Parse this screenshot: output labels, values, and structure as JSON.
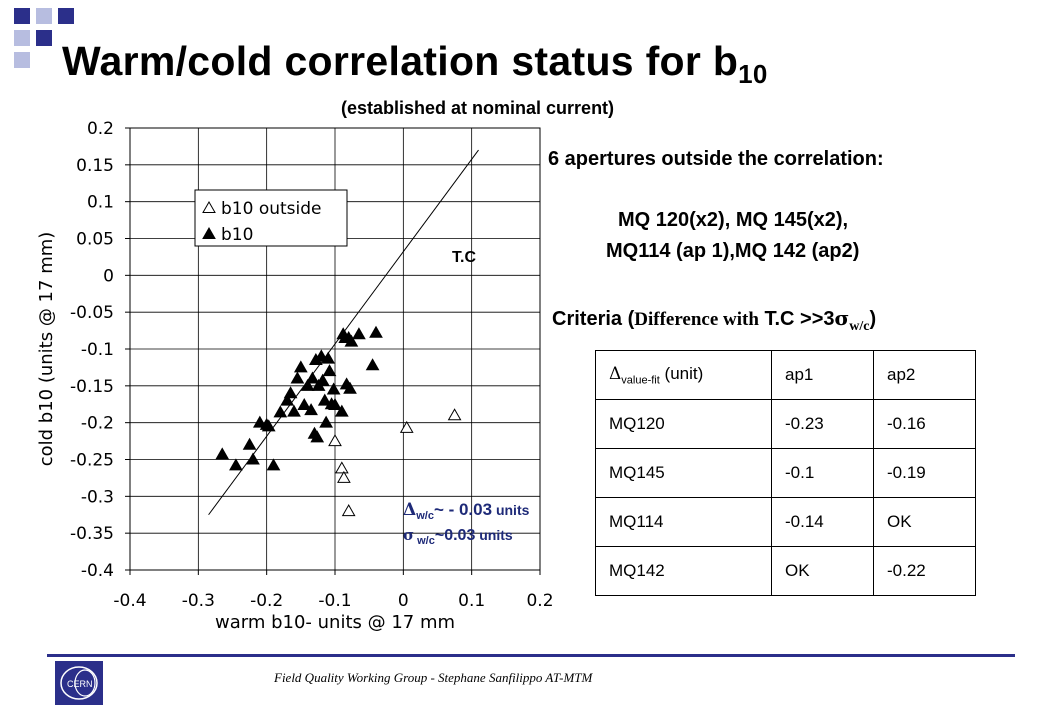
{
  "slide": {
    "title_main": "Warm/cold  correlation status for b",
    "title_sub": "10",
    "subtitle": "(established at nominal current)",
    "info_heading": "6 apertures outside the correlation:",
    "info_magnets_line1": "MQ 120(x2), MQ 145(x2),",
    "info_magnets_line2": "MQ114 (ap 1),MQ 142 (ap2)",
    "criteria_prefix": "Criteria (",
    "criteria_phrase": "Difference with",
    "criteria_tc": " T.C >>3",
    "criteria_sigma": "σ",
    "criteria_sub": "w/c",
    "criteria_close": ")",
    "delta_note_symbol": "Δ",
    "delta_note_sub": "w/c",
    "delta_note_text": "~  - 0.03",
    "delta_note_units": " units",
    "sigma_note_symbol": "σ",
    "sigma_note_sub": " w/c",
    "sigma_note_text": "~0.03",
    "sigma_note_units": " units",
    "footer": "Field Quality Working Group -  Stephane Sanfilippo    AT-MTM",
    "logo_text": "CERN",
    "accent": "#2b2f8a",
    "note_color": "#1e2a78"
  },
  "table": {
    "header": {
      "symbol": "Δ",
      "sub": "value-fit",
      "unit": " (unit)",
      "col1": "ap1",
      "col2": "ap2"
    },
    "rows": [
      {
        "name": "MQ120",
        "ap1": "-0.23",
        "ap2": "-0.16"
      },
      {
        "name": "MQ145",
        "ap1": "-0.1",
        "ap2": "-0.19"
      },
      {
        "name": "MQ114",
        "ap1": "-0.14",
        "ap2": "OK"
      },
      {
        "name": "MQ142",
        "ap1": "OK",
        "ap2": "-0.22"
      }
    ]
  },
  "chart_data": {
    "type": "scatter",
    "xlabel": "warm b10- units @ 17 mm",
    "ylabel": "cold b10 (units @ 17 mm)",
    "xlim": [
      -0.4,
      0.2
    ],
    "ylim": [
      -0.4,
      0.2
    ],
    "xticks": [
      "-0.4",
      "-0.3",
      "-0.2",
      "-0.1",
      "0",
      "0.1",
      "0.2"
    ],
    "yticks": [
      "0.2",
      "0.15",
      "0.1",
      "0.05",
      "0",
      "-0.05",
      "-0.1",
      "-0.15",
      "-0.2",
      "-0.25",
      "-0.3",
      "-0.35",
      "-0.4"
    ],
    "grid": true,
    "legend_position": "top-left",
    "series": [
      {
        "name": "b10 outside",
        "marker": "open-triangle",
        "points": [
          [
            -0.1,
            -0.225
          ],
          [
            0.005,
            -0.207
          ],
          [
            0.075,
            -0.19
          ],
          [
            -0.09,
            -0.262
          ],
          [
            -0.087,
            -0.275
          ],
          [
            -0.08,
            -0.32
          ]
        ]
      },
      {
        "name": "b10",
        "marker": "filled-triangle",
        "points": [
          [
            -0.265,
            -0.243
          ],
          [
            -0.245,
            -0.258
          ],
          [
            -0.225,
            -0.23
          ],
          [
            -0.22,
            -0.25
          ],
          [
            -0.21,
            -0.2
          ],
          [
            -0.2,
            -0.203
          ],
          [
            -0.197,
            -0.205
          ],
          [
            -0.19,
            -0.258
          ],
          [
            -0.18,
            -0.186
          ],
          [
            -0.17,
            -0.17
          ],
          [
            -0.165,
            -0.16
          ],
          [
            -0.16,
            -0.185
          ],
          [
            -0.155,
            -0.14
          ],
          [
            -0.15,
            -0.125
          ],
          [
            -0.145,
            -0.176
          ],
          [
            -0.14,
            -0.15
          ],
          [
            -0.135,
            -0.183
          ],
          [
            -0.133,
            -0.14
          ],
          [
            -0.13,
            -0.215
          ],
          [
            -0.128,
            -0.115
          ],
          [
            -0.126,
            -0.22
          ],
          [
            -0.124,
            -0.15
          ],
          [
            -0.12,
            -0.11
          ],
          [
            -0.118,
            -0.143
          ],
          [
            -0.115,
            -0.17
          ],
          [
            -0.113,
            -0.2
          ],
          [
            -0.11,
            -0.113
          ],
          [
            -0.108,
            -0.13
          ],
          [
            -0.105,
            -0.175
          ],
          [
            -0.102,
            -0.155
          ],
          [
            -0.1,
            -0.176
          ],
          [
            -0.09,
            -0.185
          ],
          [
            -0.088,
            -0.08
          ],
          [
            -0.085,
            -0.085
          ],
          [
            -0.083,
            -0.148
          ],
          [
            -0.08,
            -0.085
          ],
          [
            -0.078,
            -0.154
          ],
          [
            -0.076,
            -0.09
          ],
          [
            -0.065,
            -0.08
          ],
          [
            -0.045,
            -0.122
          ],
          [
            -0.04,
            -0.078
          ]
        ]
      }
    ],
    "fit_line": {
      "label": "T.C",
      "from": [
        -0.285,
        -0.325
      ],
      "to": [
        0.11,
        0.17
      ]
    }
  }
}
